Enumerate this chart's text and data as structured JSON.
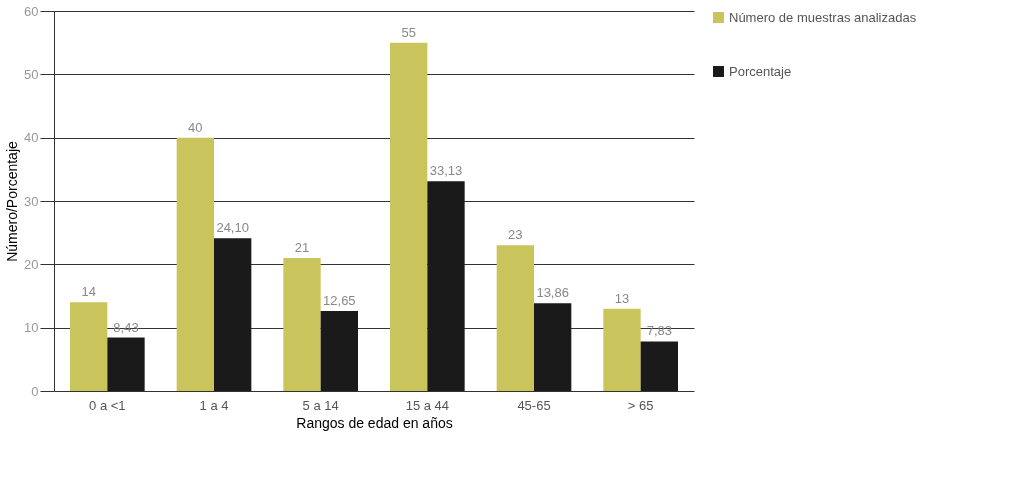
{
  "chart_data": {
    "type": "bar",
    "xlabel": "Rangos de edad en años",
    "ylabel": "Número/Porcentaje",
    "categories": [
      "0 a <1",
      "1 a 4",
      "5 a 14",
      "15 a 44",
      "45-65",
      "> 65"
    ],
    "series": [
      {
        "name": "Número de muestras analizadas",
        "color": "#c9c55c",
        "values": [
          14,
          40,
          21,
          55,
          23,
          13
        ],
        "value_labels": [
          "14",
          "40",
          "21",
          "55",
          "23",
          "13"
        ]
      },
      {
        "name": "Porcentaje",
        "color": "#1a1a1a",
        "values": [
          8.43,
          24.1,
          12.65,
          33.13,
          13.86,
          7.83
        ],
        "value_labels": [
          "8,43",
          "24,10",
          "12,65",
          "33,13",
          "13,86",
          "7,83"
        ]
      }
    ],
    "ylim": [
      0,
      60
    ],
    "yticks": [
      0,
      10,
      20,
      30,
      40,
      50,
      60
    ],
    "grid": "y",
    "legend": "right"
  }
}
